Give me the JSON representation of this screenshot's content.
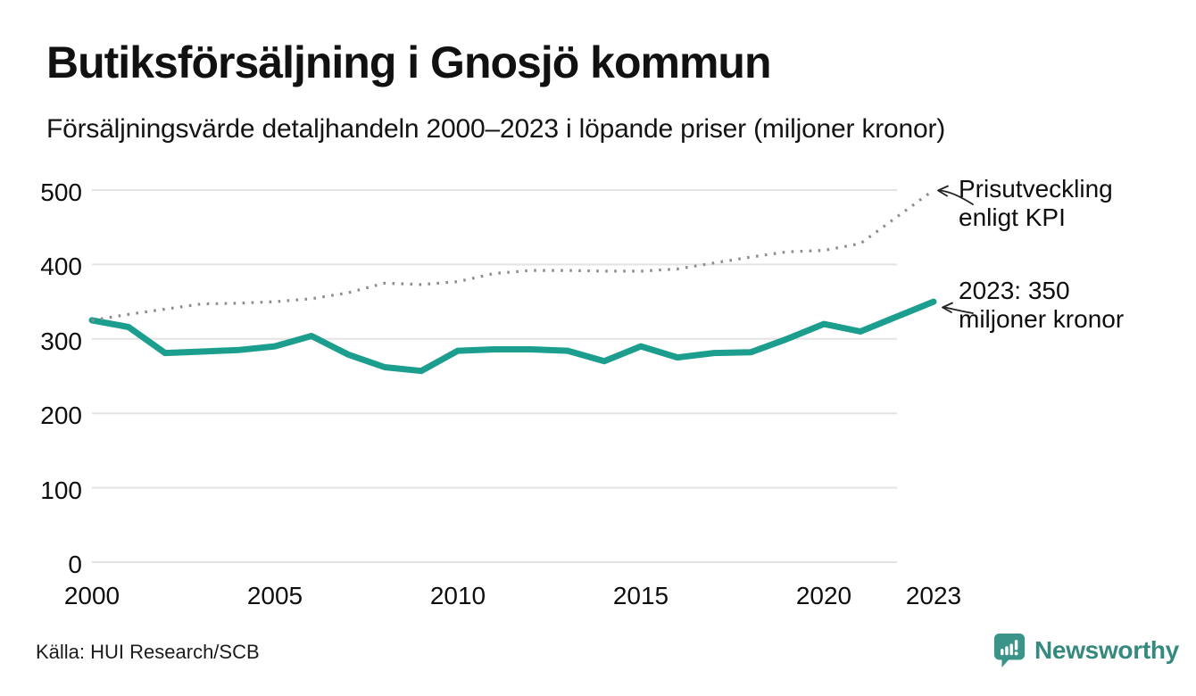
{
  "header": {
    "title": "Butiksförsäljning i Gnosjö kommun",
    "subtitle": "Försäljningsvärde detaljhandeln 2000–2023 i löpande priser (miljoner kronor)"
  },
  "annotations": {
    "kpi": {
      "lines": [
        "Prisutveckling",
        "enligt KPI"
      ]
    },
    "latest": {
      "lines": [
        "2023: 350",
        "miljoner kronor"
      ]
    }
  },
  "footer": {
    "source": "Källa: HUI Research/SCB",
    "brand": "Newsworthy"
  },
  "colors": {
    "sales_line": "#1b9e8e",
    "kpi_line": "#8d8d8d",
    "gridline": "#e3e3e3",
    "brand_teal": "#35897f",
    "badge_teal": "#3a948a"
  },
  "chart_data": {
    "type": "line",
    "title": "Butiksförsäljning i Gnosjö kommun",
    "subtitle": "Försäljningsvärde detaljhandeln 2000–2023 i löpande priser (miljoner kronor)",
    "xlabel": "",
    "ylabel": "miljoner kronor",
    "ylim": [
      0,
      500
    ],
    "yticks": [
      0,
      100,
      200,
      300,
      400,
      500
    ],
    "xtick_years": [
      2000,
      2005,
      2010,
      2015,
      2020,
      2023
    ],
    "grid": "horizontal",
    "legend_position": "annotations-right",
    "x": [
      2000,
      2001,
      2002,
      2003,
      2004,
      2005,
      2006,
      2007,
      2008,
      2009,
      2010,
      2011,
      2012,
      2013,
      2014,
      2015,
      2016,
      2017,
      2018,
      2019,
      2020,
      2021,
      2022,
      2023
    ],
    "series": [
      {
        "name": "Butiksförsäljning, löpande priser (miljoner kronor)",
        "style": "solid",
        "color": "#1b9e8e",
        "values": [
          325,
          316,
          281,
          283,
          285,
          290,
          304,
          279,
          262,
          257,
          284,
          286,
          286,
          284,
          270,
          290,
          275,
          281,
          282,
          300,
          320,
          310,
          330,
          350
        ]
      },
      {
        "name": "Prisutveckling enligt KPI",
        "style": "dotted",
        "color": "#8d8d8d",
        "values": [
          325,
          333,
          340,
          347,
          348,
          350,
          354,
          362,
          375,
          373,
          377,
          388,
          392,
          392,
          391,
          391,
          394,
          402,
          410,
          417,
          419,
          428,
          464,
          500
        ]
      }
    ]
  }
}
